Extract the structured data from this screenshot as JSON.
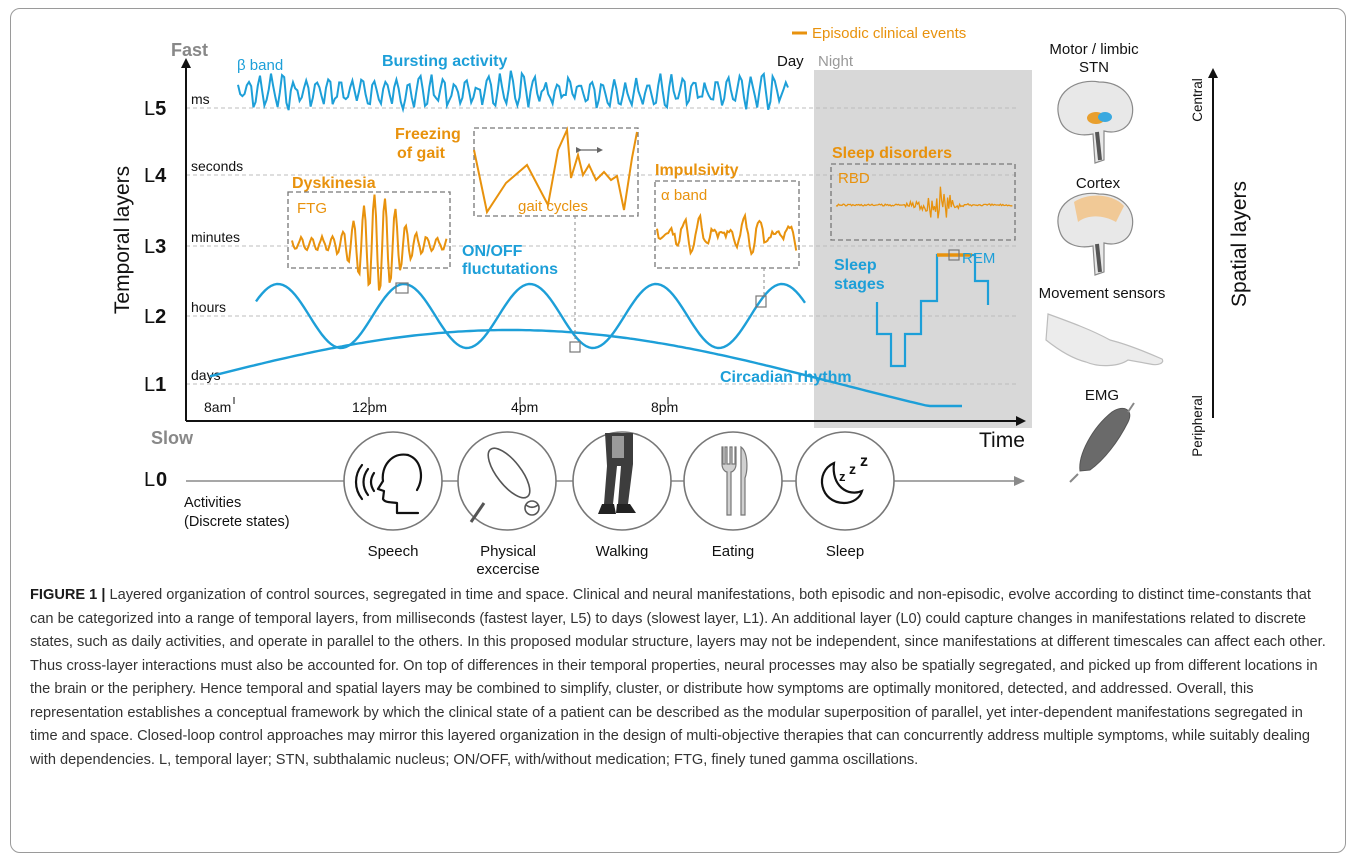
{
  "colors": {
    "orange": "#e8920d",
    "blue": "#1d9fd8",
    "grey_text": "#888888",
    "night_bg": "#d8d8d8",
    "dashed": "#bfbfbf",
    "box": "#777777"
  },
  "axes": {
    "fast": "Fast",
    "slow": "Slow",
    "y_title": "Temporal layers",
    "x_title": "Time",
    "layers": [
      {
        "id": "L5",
        "num": "5",
        "scale": "ms"
      },
      {
        "id": "L4",
        "num": "4",
        "scale": "seconds"
      },
      {
        "id": "L3",
        "num": "3",
        "scale": "minutes"
      },
      {
        "id": "L2",
        "num": "2",
        "scale": "hours"
      },
      {
        "id": "L1",
        "num": "1",
        "scale": "days"
      }
    ],
    "l0": {
      "prefix": "L",
      "num": "0",
      "line1": "Activities",
      "line2": "(Discrete states)"
    },
    "time_ticks": [
      "8am",
      "12pm",
      "4pm",
      "8pm"
    ]
  },
  "legend": {
    "episodic": "Episodic clinical events",
    "day": "Day",
    "night": "Night"
  },
  "labels": {
    "beta_band": "β band",
    "bursting": "Bursting activity",
    "freezing_line1": "Freezing",
    "freezing_line2": "of gait",
    "gait_cycles": "gait cycles",
    "dyskinesia": "Dyskinesia",
    "ftg": "FTG",
    "impulsivity": "Impulsivity",
    "alpha_band": "α band",
    "onoff_line1": "ON/OFF",
    "onoff_line2": "fluctutations",
    "sleep_disorders": "Sleep disorders",
    "rbd": "RBD",
    "sleep_stages_line1": "Sleep",
    "sleep_stages_line2": "stages",
    "rem": "REM",
    "circadian": "Circadian rhythm"
  },
  "activities": [
    {
      "name": "speech",
      "line1": "Speech",
      "line2": ""
    },
    {
      "name": "physical-exercise",
      "line1": "Physical",
      "line2": "excercise"
    },
    {
      "name": "walking",
      "line1": "Walking",
      "line2": ""
    },
    {
      "name": "eating",
      "line1": "Eating",
      "line2": ""
    },
    {
      "name": "sleep",
      "line1": "Sleep",
      "line2": ""
    }
  ],
  "spatial": {
    "title": "Spatial layers",
    "central": "Central",
    "peripheral": "Peripheral",
    "motor_line1": "Motor / limbic",
    "motor_line2": "STN",
    "cortex": "Cortex",
    "movement_sensors": "Movement sensors",
    "emg": "EMG"
  },
  "caption": {
    "label": "FIGURE 1 |",
    "text": "Layered organization of control sources, segregated in time and space. Clinical and neural manifestations, both episodic and non-episodic, evolve according to distinct time-constants that can be categorized into a range of temporal layers, from milliseconds (fastest layer, L5) to days (slowest layer, L1). An additional layer (L0) could capture changes in manifestations related to discrete states, such as daily activities, and operate in parallel to the others. In this proposed modular structure, layers may not be independent, since manifestations at different timescales can affect each other. Thus cross-layer interactions must also be accounted for. On top of differences in their temporal properties, neural processes may also be spatially segregated, and picked up from different locations in the brain or the periphery. Hence temporal and spatial layers may be combined to simplify, cluster, or distribute how symptoms are optimally monitored, detected, and addressed. Overall, this representation establishes a conceptual framework by which the clinical state of a patient can be described as the modular superposition of parallel, yet inter-dependent manifestations segregated in time and space. Closed-loop control approaches may mirror this layered organization in the design of multi-objective therapies that can concurrently address multiple symptoms, while suitably dealing with dependencies. L, temporal layer; STN, subthalamic nucleus; ON/OFF, with/without medication; FTG, finely tuned gamma oscillations."
  }
}
